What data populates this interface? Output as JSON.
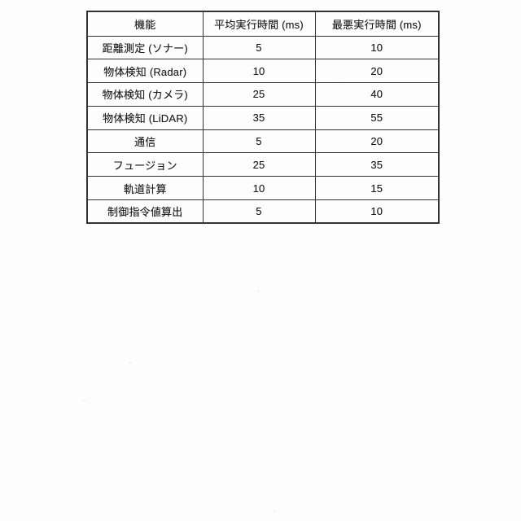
{
  "colors": {
    "paper": "#fdfdfd",
    "ink": "#1c1c1c",
    "ink-border": "#333333"
  },
  "table": {
    "columns": [
      "機能",
      "平均実行時間 (ms)",
      "最悪実行時間 (ms)"
    ],
    "rows": [
      {
        "function": "距離測定 (ソナー)",
        "avg": "5",
        "worst": "10"
      },
      {
        "function": "物体検知 (Radar)",
        "avg": "10",
        "worst": "20"
      },
      {
        "function": "物体検知 (カメラ)",
        "avg": "25",
        "worst": "40"
      },
      {
        "function": "物体検知 (LiDAR)",
        "avg": "35",
        "worst": "55"
      },
      {
        "function": "通信",
        "avg": "5",
        "worst": "20"
      },
      {
        "function": "フュージョン",
        "avg": "25",
        "worst": "35"
      },
      {
        "function": "軌道計算",
        "avg": "10",
        "worst": "15"
      },
      {
        "function": "制御指令値算出",
        "avg": "5",
        "worst": "10"
      }
    ]
  }
}
